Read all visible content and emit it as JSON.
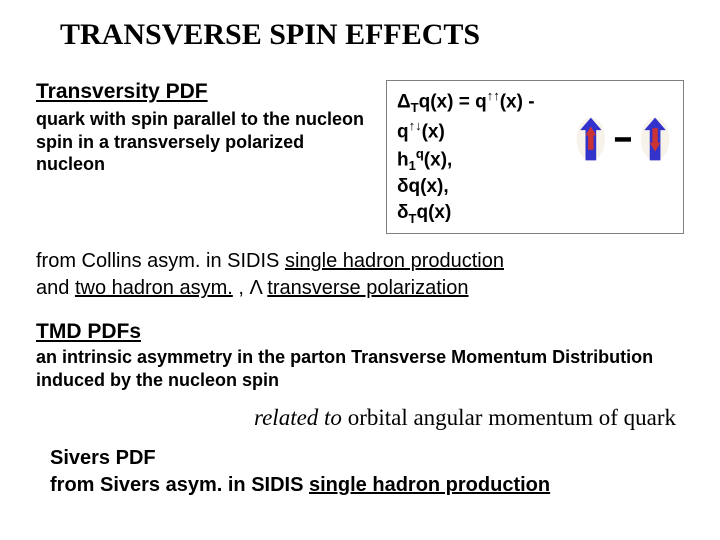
{
  "title": "TRANSVERSE SPIN EFFECTS",
  "section1": {
    "heading": "Transversity PDF",
    "desc": "quark with spin parallel to the nucleon spin in a transversely polarized nucleon"
  },
  "formula": {
    "line1_html": "Δ<sub>T</sub>q(x) = q<sup>↑↑</sup>(x) - q<sup>↑↓</sup>(x)",
    "line2_html": "h<sub>1</sub><sup>q</sup>(x),",
    "line3_html": "δq(x),",
    "line4_html": "δ<sub>T</sub>q(x)",
    "box_border_color": "#808080"
  },
  "graphic": {
    "outer_arrow_color": "#3333cc",
    "inner_arrow_color": "#cc3333",
    "minus_color": "#000000",
    "ellipse_fill": "#f0e8d8",
    "width": 112,
    "height": 56
  },
  "body1_html": "from  Collins asym. in SIDIS <span class=\"u\">single hadron production</span><br>and <span class=\"u\">two hadron asym.</span> , Λ <span class=\"u\">transverse polarization</span>",
  "section2": {
    "heading": "TMD  PDFs",
    "desc": "an intrinsic asymmetry in the parton\nTransverse Momentum Distribution induced by the nucleon spin"
  },
  "italic_line_html": "related to <span class=\"nonit\">orbital angular momentum of quark</span>",
  "body3_html": "Sivers PDF<br>from  Sivers asym. in SIDIS <span class=\"u\">single hadron production</span>",
  "colors": {
    "background": "#ffffff",
    "text": "#000000"
  },
  "fonts": {
    "title_family": "Times New Roman",
    "body_family": "Arial",
    "title_size_pt": 30,
    "heading_size_pt": 21,
    "desc_size_pt": 18,
    "body_size_pt": 20,
    "italic_size_pt": 23
  }
}
